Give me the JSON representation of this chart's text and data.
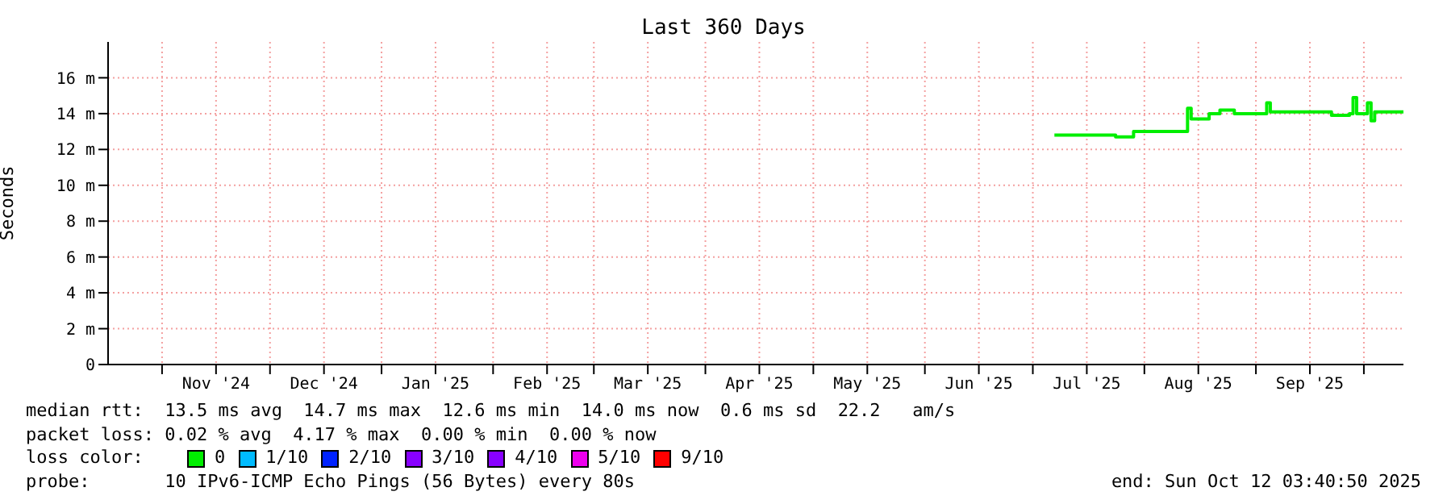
{
  "chart_data": {
    "type": "step",
    "title": "Last 360 Days",
    "ylabel": "Seconds",
    "legend_title": "loss color:",
    "legend": "bottom",
    "grid": true,
    "x": [
      "2025-07-07",
      "2025-07-23",
      "2025-07-24",
      "2025-07-28",
      "2025-07-29",
      "2025-08-12",
      "2025-08-13",
      "2025-08-14",
      "2025-08-18",
      "2025-08-19",
      "2025-08-21",
      "2025-08-22",
      "2025-08-25",
      "2025-08-26",
      "2025-09-03",
      "2025-09-04",
      "2025-09-05",
      "2025-09-21",
      "2025-09-22",
      "2025-09-26",
      "2025-09-27",
      "2025-09-28",
      "2025-09-29",
      "2025-10-01",
      "2025-10-02",
      "2025-10-03",
      "2025-10-04",
      "2025-10-12"
    ],
    "series": [
      {
        "name": "0",
        "color": "#00ee00",
        "values": [
          12.8,
          12.8,
          12.7,
          12.7,
          13.0,
          13.0,
          14.3,
          13.7,
          13.7,
          14.0,
          14.0,
          14.2,
          14.2,
          14.0,
          14.0,
          14.6,
          14.1,
          14.1,
          13.9,
          13.9,
          14.0,
          14.9,
          14.0,
          14.0,
          14.6,
          13.6,
          14.1,
          14.1
        ]
      },
      {
        "name": "1/10",
        "color": "#00bbff",
        "values": [
          null,
          null,
          null,
          null,
          null,
          null,
          null,
          null,
          null,
          null,
          null,
          null,
          null,
          null,
          null,
          null,
          null,
          null,
          null,
          null,
          null,
          null,
          null,
          null,
          null,
          null,
          null,
          null
        ]
      },
      {
        "name": "2/10",
        "color": "#0022ff",
        "values": [
          null,
          null,
          null,
          null,
          null,
          null,
          null,
          null,
          null,
          null,
          null,
          null,
          null,
          null,
          null,
          null,
          null,
          null,
          null,
          null,
          null,
          null,
          null,
          null,
          null,
          null,
          null,
          null
        ]
      },
      {
        "name": "3/10",
        "color": "#8800ff",
        "values": [
          null,
          null,
          null,
          null,
          null,
          null,
          null,
          null,
          null,
          null,
          null,
          null,
          null,
          null,
          null,
          null,
          null,
          null,
          null,
          null,
          null,
          null,
          null,
          null,
          null,
          null,
          null,
          null
        ]
      },
      {
        "name": "4/10",
        "color": "#8800ff",
        "values": [
          null,
          null,
          null,
          null,
          null,
          null,
          null,
          null,
          null,
          null,
          null,
          null,
          null,
          null,
          null,
          null,
          null,
          null,
          null,
          null,
          null,
          null,
          null,
          null,
          null,
          null,
          null,
          null
        ]
      },
      {
        "name": "5/10",
        "color": "#ee00ee",
        "values": [
          null,
          null,
          null,
          null,
          null,
          null,
          null,
          null,
          null,
          null,
          null,
          null,
          null,
          null,
          null,
          null,
          null,
          null,
          null,
          null,
          null,
          null,
          null,
          null,
          null,
          null,
          null,
          null
        ]
      },
      {
        "name": "9/10",
        "color": "#ff0000",
        "values": [
          null,
          null,
          null,
          null,
          null,
          null,
          null,
          null,
          null,
          null,
          null,
          null,
          null,
          null,
          null,
          null,
          null,
          null,
          null,
          null,
          null,
          null,
          null,
          null,
          null,
          null,
          null,
          null
        ]
      }
    ],
    "xlim": [
      "2024-10-17",
      "2025-10-12"
    ],
    "xticks": [
      {
        "value": "2024-11-01",
        "label": null
      },
      {
        "value": "2024-11-16",
        "label": "Nov '24"
      },
      {
        "value": "2024-12-01",
        "label": null
      },
      {
        "value": "2024-12-16",
        "label": "Dec '24"
      },
      {
        "value": "2025-01-01",
        "label": null
      },
      {
        "value": "2025-01-16",
        "label": "Jan '25"
      },
      {
        "value": "2025-02-01",
        "label": null
      },
      {
        "value": "2025-02-16",
        "label": "Feb '25"
      },
      {
        "value": "2025-03-01",
        "label": null
      },
      {
        "value": "2025-03-16",
        "label": "Mar '25"
      },
      {
        "value": "2025-04-01",
        "label": null
      },
      {
        "value": "2025-04-16",
        "label": "Apr '25"
      },
      {
        "value": "2025-05-01",
        "label": null
      },
      {
        "value": "2025-05-16",
        "label": "May '25"
      },
      {
        "value": "2025-06-01",
        "label": null
      },
      {
        "value": "2025-06-16",
        "label": "Jun '25"
      },
      {
        "value": "2025-07-01",
        "label": null
      },
      {
        "value": "2025-07-16",
        "label": "Jul '25"
      },
      {
        "value": "2025-08-01",
        "label": null
      },
      {
        "value": "2025-08-16",
        "label": "Aug '25"
      },
      {
        "value": "2025-09-01",
        "label": null
      },
      {
        "value": "2025-09-16",
        "label": "Sep '25"
      },
      {
        "value": "2025-10-01",
        "label": null
      }
    ],
    "ylim": [
      0,
      18
    ],
    "yticks": [
      0,
      {
        "value": 2,
        "label": "2 m"
      },
      {
        "value": 4,
        "label": "4 m"
      },
      {
        "value": 6,
        "label": "6 m"
      },
      {
        "value": 8,
        "label": "8 m"
      },
      {
        "value": 10,
        "label": "10 m"
      },
      {
        "value": 12,
        "label": "12 m"
      },
      {
        "value": 14,
        "label": "14 m"
      },
      {
        "value": 16,
        "label": "16 m"
      }
    ],
    "annotations": [
      "median rtt:  13.5 ms avg  14.7 ms max  12.6 ms min  14.0 ms now  0.6 ms sd  22.2   am/s",
      "packet loss: 0.02 % avg  4.17 % max  0.00 % min  0.00 % now",
      "probe:       10 IPv6-ICMP Echo Pings (56 Bytes) every 80s",
      "end: Sun Oct 12 03:40:50 2025"
    ]
  }
}
